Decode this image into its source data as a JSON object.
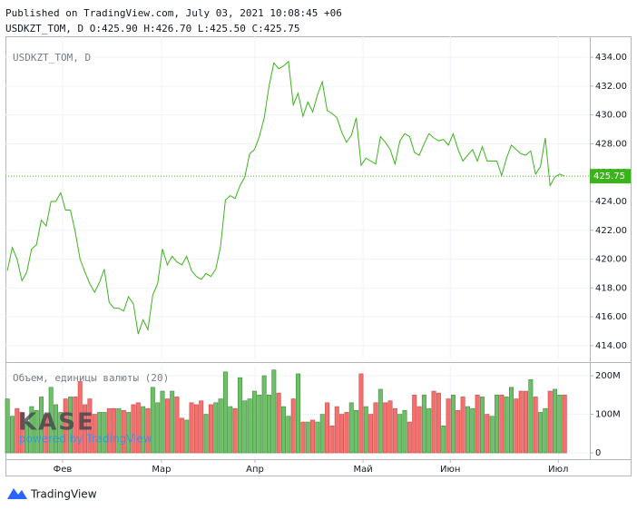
{
  "header": {
    "published": "Published on TradingView.com, July 03, 2021 10:08:45 +06",
    "ohlc": "USDKZT_TOM, D O:425.90 H:426.70 L:425.50 C:425.75"
  },
  "watermark": {
    "logo": "KASE",
    "powered": "powered by TradingView"
  },
  "footer": {
    "brand": "TradingView"
  },
  "chart_data": {
    "type": "line",
    "series": [
      {
        "name": "USDKZT_TOM, D",
        "color": "#3cb31c",
        "values": [
          419.2,
          420.8,
          420.0,
          418.5,
          419.1,
          420.7,
          421.0,
          422.7,
          422.3,
          424.0,
          424.0,
          424.6,
          423.4,
          423.4,
          421.9,
          420.0,
          419.1,
          418.3,
          417.7,
          418.4,
          419.3,
          417.0,
          416.6,
          416.6,
          416.4,
          417.4,
          416.9,
          414.8,
          415.8,
          415.1,
          417.5,
          418.3,
          420.7,
          419.6,
          420.2,
          419.8,
          419.6,
          420.2,
          419.2,
          418.8,
          418.6,
          419.0,
          418.8,
          419.3,
          420.9,
          424.1,
          424.4,
          424.2,
          425.1,
          425.7,
          427.3,
          427.6,
          428.5,
          429.8,
          432.0,
          433.6,
          433.2,
          433.4,
          433.7,
          430.7,
          431.5,
          429.9,
          430.9,
          430.2,
          431.4,
          432.3,
          430.3,
          430.1,
          429.8,
          428.8,
          428.1,
          428.6,
          429.8,
          426.5,
          427.0,
          426.8,
          426.6,
          428.5,
          428.1,
          427.6,
          426.6,
          428.2,
          428.7,
          428.5,
          427.4,
          427.2,
          428.0,
          428.7,
          428.4,
          428.2,
          428.3,
          427.9,
          428.7,
          427.6,
          426.8,
          427.2,
          427.6,
          426.8,
          427.8,
          426.8,
          426.8,
          426.8,
          425.8,
          427.0,
          427.9,
          427.6,
          427.3,
          427.2,
          427.5,
          425.9,
          426.4,
          428.4,
          425.1,
          425.7,
          425.9,
          425.75
        ]
      }
    ],
    "xlim": [
      -0.4,
      120.2
    ],
    "xticks": [
      {
        "value": 11.4,
        "label": "Фев"
      },
      {
        "value": 31.8,
        "label": "Мар"
      },
      {
        "value": 51.1,
        "label": "Апр"
      },
      {
        "value": 73.4,
        "label": "Май"
      },
      {
        "value": 91.4,
        "label": "Июн"
      },
      {
        "value": 113.7,
        "label": "Июл"
      }
    ],
    "ylim": [
      413.05,
      435.45
    ],
    "yticks": [
      {
        "value": 414,
        "label": "414.00"
      },
      {
        "value": 416,
        "label": "416.00"
      },
      {
        "value": 418,
        "label": "418.00"
      },
      {
        "value": 420,
        "label": "420.00"
      },
      {
        "value": 422,
        "label": "422.00"
      },
      {
        "value": 424,
        "label": "424.00"
      },
      {
        "value": 426,
        "label": "426.00"
      },
      {
        "value": 428,
        "label": "428.00"
      },
      {
        "value": 430,
        "label": "430.00"
      },
      {
        "value": 432,
        "label": "432.00"
      },
      {
        "value": 434,
        "label": "434.00"
      }
    ],
    "grid": true,
    "volume": {
      "name": "Объем, единицы валюты (20)",
      "up_color": "#6fbf6a",
      "down_color": "#f2716f",
      "ylim": [
        -14000000.0,
        226000000.0
      ],
      "yticks": [
        0,
        {
          "value": 100000000.0,
          "label": "100M"
        },
        {
          "value": 200000000.0,
          "label": "200M"
        }
      ],
      "values": [
        140000000.0,
        95000000.0,
        115000000.0,
        105000000.0,
        80000000.0,
        120000000.0,
        110000000.0,
        145000000.0,
        100000000.0,
        170000000.0,
        125000000.0,
        105000000.0,
        140000000.0,
        145000000.0,
        145000000.0,
        185000000.0,
        125000000.0,
        140000000.0,
        100000000.0,
        105000000.0,
        105000000.0,
        115000000.0,
        115000000.0,
        115000000.0,
        110000000.0,
        105000000.0,
        125000000.0,
        130000000.0,
        120000000.0,
        115000000.0,
        170000000.0,
        130000000.0,
        160000000.0,
        140000000.0,
        160000000.0,
        145000000.0,
        90000000.0,
        85000000.0,
        130000000.0,
        125000000.0,
        135000000.0,
        100000000.0,
        125000000.0,
        130000000.0,
        140000000.0,
        210000000.0,
        120000000.0,
        115000000.0,
        195000000.0,
        135000000.0,
        140000000.0,
        160000000.0,
        150000000.0,
        200000000.0,
        150000000.0,
        215000000.0,
        155000000.0,
        120000000.0,
        95000000.0,
        140000000.0,
        205000000.0,
        80000000.0,
        80000000.0,
        85000000.0,
        80000000.0,
        100000000.0,
        130000000.0,
        70000000.0,
        120000000.0,
        100000000.0,
        105000000.0,
        130000000.0,
        110000000.0,
        205000000.0,
        120000000.0,
        100000000.0,
        130000000.0,
        165000000.0,
        130000000.0,
        135000000.0,
        115000000.0,
        100000000.0,
        110000000.0,
        80000000.0,
        150000000.0,
        120000000.0,
        150000000.0,
        115000000.0,
        160000000.0,
        155000000.0,
        70000000.0,
        140000000.0,
        150000000.0,
        110000000.0,
        145000000.0,
        120000000.0,
        115000000.0,
        150000000.0,
        145000000.0,
        100000000.0,
        95000000.0,
        150000000.0,
        150000000.0,
        145000000.0,
        170000000.0,
        140000000.0,
        160000000.0,
        160000000.0,
        190000000.0,
        145000000.0,
        105000000.0,
        115000000.0,
        160000000.0,
        165000000.0,
        150000000.0,
        150000000.0
      ]
    }
  }
}
